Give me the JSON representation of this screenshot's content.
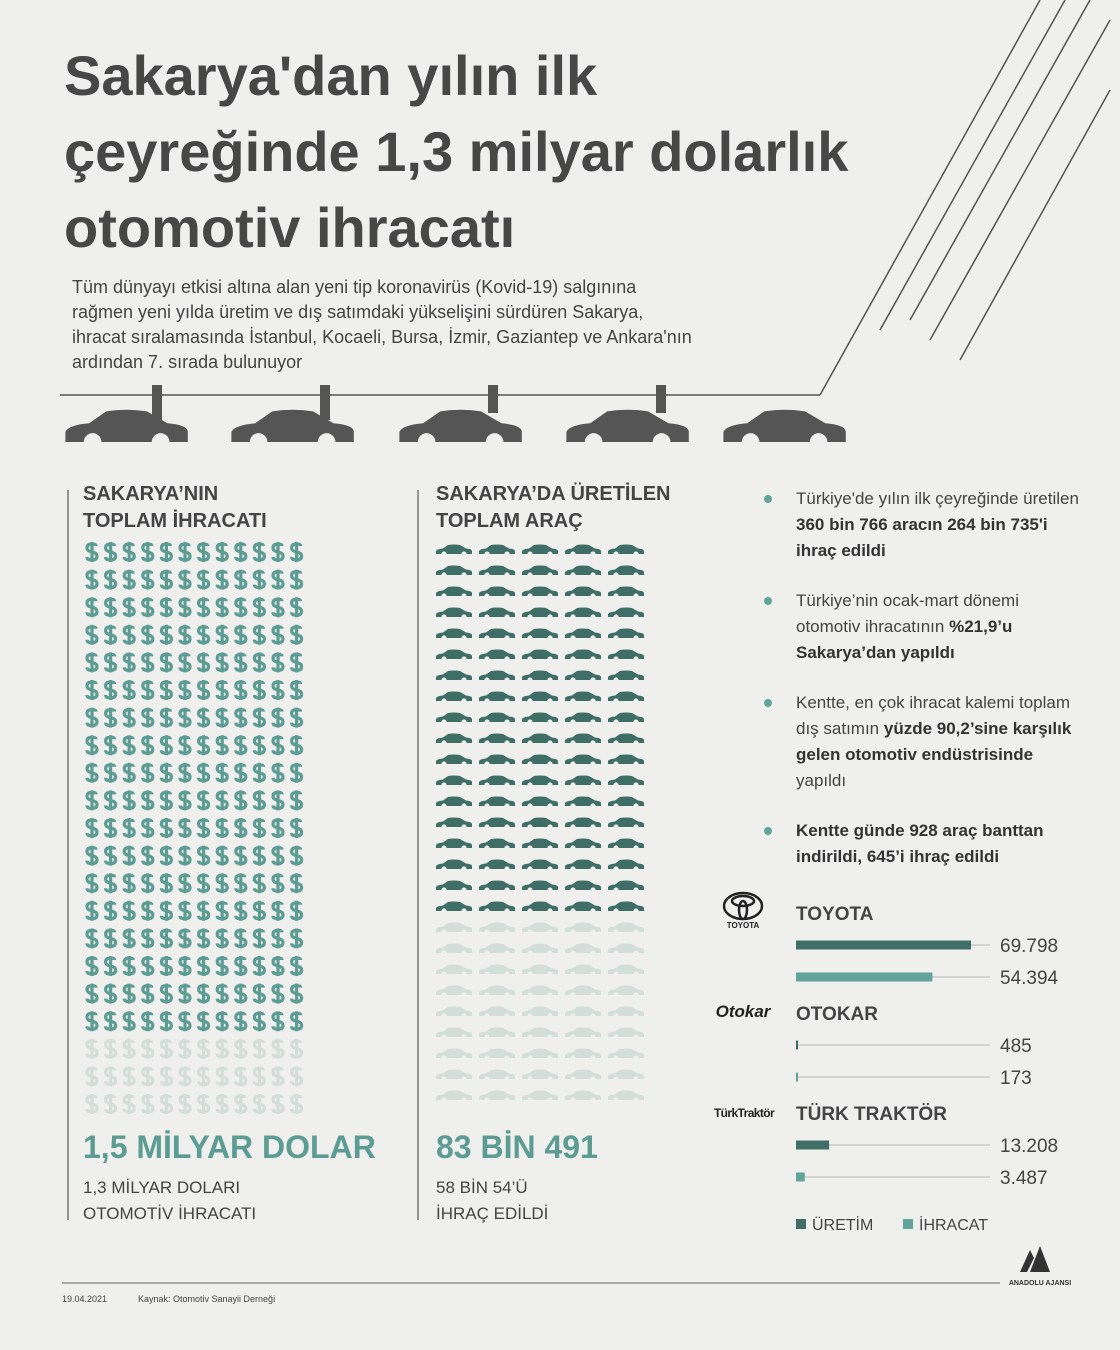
{
  "header": {
    "title_lines": [
      "Sakarya'dan yılın ilk",
      "çeyreğinde 1,3 milyar dolarlık",
      "otomotiv ihracatı"
    ],
    "intro_lines": [
      "Tüm dünyayı etkisi altına alan yeni tip koronavirüs (Kovid-19) salgınına",
      "rağmen yeni yılda üretim ve dış satımdaki yükselişini sürdüren Sakarya,",
      "ihracat sıralamasında İstanbul, Kocaeli, Bursa, İzmir, Gaziantep ve Ankara'nın",
      "ardından 7. sırada bulunuyor"
    ]
  },
  "exports": {
    "heading_lines": [
      "SAKARYA’NIN",
      "TOPLAM İHRACATI"
    ],
    "total": "1,5 MİLYAR DOLAR",
    "note_lines": [
      "1,3 MİLYAR DOLARI",
      "OTOMOTİV İHRACATI"
    ]
  },
  "vehicles": {
    "heading_lines": [
      "SAKARYA’DA ÜRETİLEN",
      "TOPLAM ARAÇ"
    ],
    "total": "83 BİN 491",
    "note_lines": [
      "58 BİN 54’Ü",
      "İHRAÇ EDİLDİ"
    ]
  },
  "bullets": [
    [
      {
        "text": "Türkiye'de yılın ilk çeyreğinde üretilen ",
        "bold": false
      },
      {
        "text": "360 bin 766 aracın 264 bin 735'i ihraç edildi",
        "bold": true
      }
    ],
    [
      {
        "text": "Türkiye’nin ocak-mart dönemi otomotiv ihracatının ",
        "bold": false
      },
      {
        "text": "%21,9’u Sakarya’dan yapıldı",
        "bold": true
      }
    ],
    [
      {
        "text": "Kentte, en çok ihracat kalemi toplam dış satımın ",
        "bold": false
      },
      {
        "text": "yüzde 90,2’sine karşılık gelen otomotiv endüstrisinde",
        "bold": true
      },
      {
        "text": " yapıldı",
        "bold": false
      }
    ],
    [
      {
        "text": "Kentte günde 928 araç banttan indirildi, 645’i ihraç edildi",
        "bold": true
      }
    ]
  ],
  "logos": [
    "TOYOTA",
    "Otokar",
    "TürkTraktör"
  ],
  "chart_data": {
    "type": "bar",
    "orientation": "horizontal",
    "categories": [
      "TOYOTA",
      "OTOKAR",
      "TÜRK TRAKTÖR"
    ],
    "series": [
      {
        "name": "ÜRETİM",
        "color": "#3f6e67",
        "values": [
          69798,
          485,
          13208
        ],
        "value_labels": [
          "69.798",
          "485",
          "13.208"
        ]
      },
      {
        "name": "İHRACAT",
        "color": "#62a39a",
        "values": [
          54394,
          173,
          3487
        ],
        "value_labels": [
          "54.394",
          "173",
          "3.487"
        ]
      }
    ]
  },
  "footer": {
    "date": "19.04.2021",
    "source": "Kaynak: Otomotiv Sanayii Derneği",
    "agency": "ANADOLU AJANSI"
  }
}
